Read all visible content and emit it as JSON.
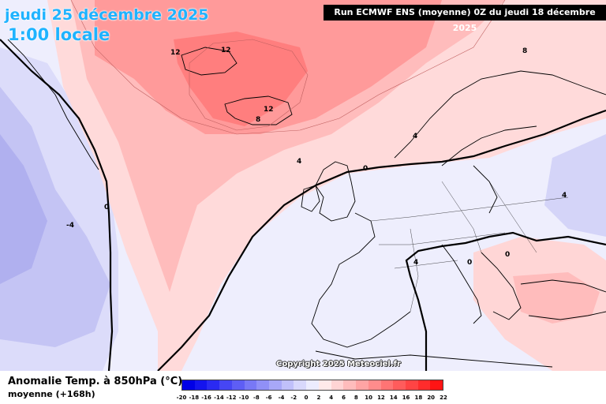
{
  "title": {
    "date": "jeudi 25 décembre 2025",
    "time": "1:00 locale"
  },
  "run_banner": "Run ECMWF ENS (moyenne) 0Z du jeudi 18 décembre 2025",
  "copyright": "Copyright 2025 Meteociel.fr",
  "legend": {
    "title": "Anomalie Temp. à 850hPa (°C)",
    "subtitle": "moyenne  (+168h)",
    "ticks": [
      "-20",
      "-18",
      "-16",
      "-14",
      "-12",
      "-10",
      "-8",
      "-6",
      "-4",
      "-2",
      "0",
      "2",
      "4",
      "6",
      "8",
      "10",
      "12",
      "14",
      "16",
      "18",
      "20",
      "22"
    ],
    "colors": [
      "#0000e6",
      "#1414ee",
      "#2a2af2",
      "#4646f4",
      "#5e5ef5",
      "#7878f6",
      "#9090f7",
      "#a8a8f8",
      "#c0c0fa",
      "#d8d8fc",
      "#ececfe",
      "#ffeaea",
      "#ffd4d4",
      "#ffbcbc",
      "#ffa4a4",
      "#ff8c8c",
      "#ff7474",
      "#ff5c5c",
      "#ff4444",
      "#ff2c2c",
      "#ff1414"
    ]
  },
  "contour_labels": [
    "12",
    "12",
    "12",
    "8",
    "8",
    "4",
    "4",
    "4",
    "0",
    "0",
    "0",
    "-4",
    "4",
    "0"
  ],
  "colors": {
    "warm_strong": "#ff7474",
    "warm_mid": "#ffa4a4",
    "warm_light": "#ffd4d4",
    "neutral": "#ffeaea",
    "cold_light": "#e4e4fb",
    "cold_mid": "#c8c8f6",
    "cold_strong": "#a8a8f0"
  }
}
